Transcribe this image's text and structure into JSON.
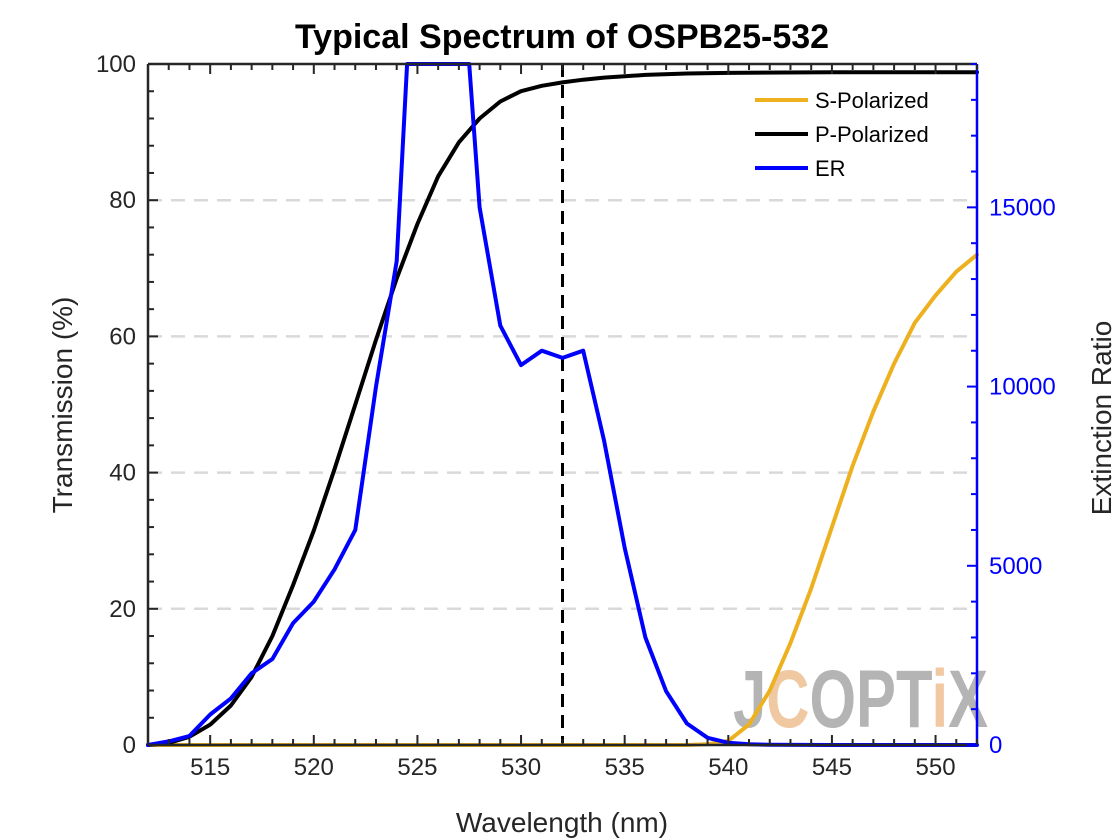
{
  "chart_data": {
    "type": "line",
    "title": "Typical Spectrum of OSPB25-532",
    "xlabel": "Wavelength (nm)",
    "ylabel_left": "Transmission (%)",
    "ylabel_right": "Extinction Ratio",
    "xlim": [
      512,
      552
    ],
    "ylim_left": [
      0,
      100
    ],
    "ylim_right": [
      0,
      19000
    ],
    "x_ticks": [
      515,
      520,
      525,
      530,
      535,
      540,
      545,
      550
    ],
    "y_ticks_left": [
      0,
      20,
      40,
      60,
      80,
      100
    ],
    "y_ticks_right": [
      0,
      5000,
      10000,
      15000
    ],
    "grid": "horizontal dashed",
    "legend_position": "top-right",
    "vertical_marker_x": 532,
    "colors": {
      "s_polarized": "#EDB120",
      "p_polarized": "#000000",
      "er": "#0000FF",
      "right_axis": "#0000FF",
      "grid": "#d9d9d9"
    },
    "series": [
      {
        "name": "S-Polarized",
        "axis": "left",
        "color": "#EDB120",
        "x": [
          512,
          538,
          539,
          540,
          541,
          542,
          543,
          544,
          545,
          546,
          547,
          548,
          549,
          550,
          551,
          552
        ],
        "values": [
          0,
          0,
          0.1,
          0.6,
          3,
          8,
          15,
          23,
          32,
          41,
          49,
          56,
          62,
          66,
          69.5,
          72
        ]
      },
      {
        "name": "P-Polarized",
        "axis": "left",
        "color": "#000000",
        "x": [
          512,
          513,
          514,
          515,
          516,
          517,
          518,
          519,
          520,
          521,
          522,
          523,
          524,
          525,
          526,
          527,
          528,
          529,
          530,
          531,
          532,
          533,
          534,
          535,
          536,
          538,
          540,
          545,
          552
        ],
        "values": [
          0,
          0.3,
          1.2,
          3,
          5.8,
          10,
          16,
          23.5,
          31.5,
          40.5,
          50,
          59.5,
          68.5,
          76.5,
          83.5,
          88.5,
          92,
          94.5,
          96,
          96.8,
          97.3,
          97.7,
          98,
          98.2,
          98.4,
          98.6,
          98.7,
          98.8,
          98.8
        ]
      },
      {
        "name": "ER",
        "axis": "right",
        "color": "#0000FF",
        "x": [
          512,
          513,
          514,
          515,
          516,
          517,
          518,
          519,
          520,
          521,
          522,
          523,
          524,
          524.5,
          525,
          527.5,
          528,
          529,
          530,
          531,
          532,
          533,
          534,
          535,
          536,
          537,
          538,
          539,
          540,
          541,
          542,
          545,
          552
        ],
        "values": [
          0,
          100,
          250,
          850,
          1300,
          2000,
          2400,
          3400,
          4000,
          4900,
          6000,
          10000,
          13500,
          19000,
          19000,
          19000,
          15000,
          11700,
          10600,
          11000,
          10800,
          11000,
          8500,
          5500,
          3000,
          1500,
          600,
          200,
          60,
          20,
          5,
          0,
          0
        ]
      }
    ]
  },
  "watermark": {
    "text": "JCOPTIX",
    "letters": [
      "J",
      "C",
      "O",
      "P",
      "T",
      "i",
      "X"
    ],
    "main_color": "#b4b4b4",
    "accent_color": "#f0c9a2"
  }
}
